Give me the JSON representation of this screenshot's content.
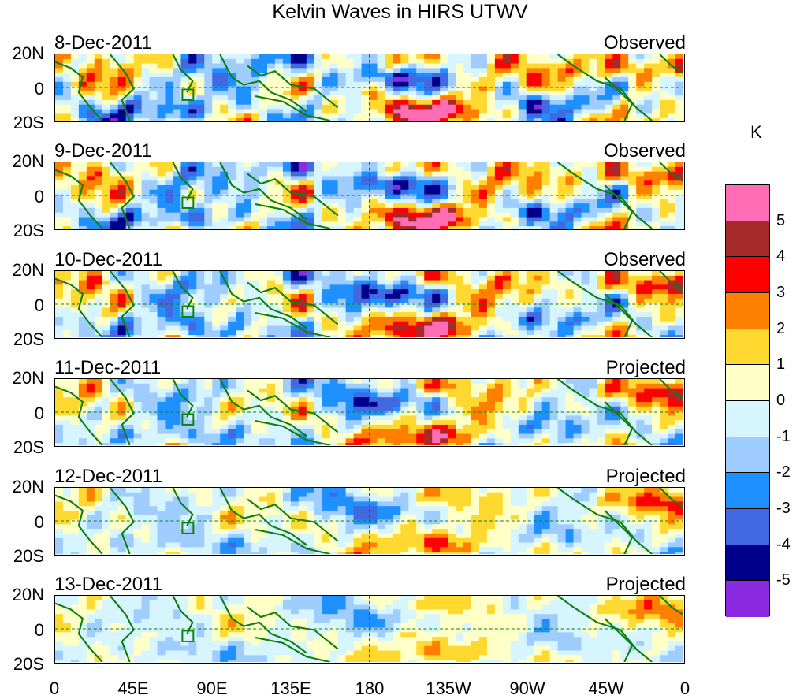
{
  "title": "Kelvin Waves in HIRS UTWV",
  "lat_labels": [
    "20N",
    "0",
    "20S"
  ],
  "lon_labels": [
    "0",
    "45E",
    "90E",
    "135E",
    "180",
    "135W",
    "90W",
    "45W",
    "0"
  ],
  "panels": [
    {
      "date": "8-Dec-2011",
      "kind": "Observed",
      "amp": 1.0,
      "phase": 0.0
    },
    {
      "date": "9-Dec-2011",
      "kind": "Observed",
      "amp": 1.0,
      "phase": 0.4
    },
    {
      "date": "10-Dec-2011",
      "kind": "Observed",
      "amp": 0.95,
      "phase": 0.8
    },
    {
      "date": "11-Dec-2011",
      "kind": "Projected",
      "amp": 0.8,
      "phase": 1.2
    },
    {
      "date": "12-Dec-2011",
      "kind": "Projected",
      "amp": 0.6,
      "phase": 1.6
    },
    {
      "date": "13-Dec-2011",
      "kind": "Projected",
      "amp": 0.45,
      "phase": 2.0
    }
  ],
  "colorbar": {
    "unit": "K",
    "levels": [
      "5",
      "4",
      "3",
      "2",
      "1",
      "0",
      "-1",
      "-2",
      "-3",
      "-4",
      "-5"
    ],
    "colors": [
      "#ff6eb4",
      "#a52a2a",
      "#ff0000",
      "#ff7f00",
      "#ffd92f",
      "#ffffc8",
      "#d7f5ff",
      "#9fcdff",
      "#1e90ff",
      "#4169e1",
      "#00008b",
      "#8a2be2"
    ]
  },
  "colors": {
    "coast": "#108010",
    "equator": "#108010"
  }
}
